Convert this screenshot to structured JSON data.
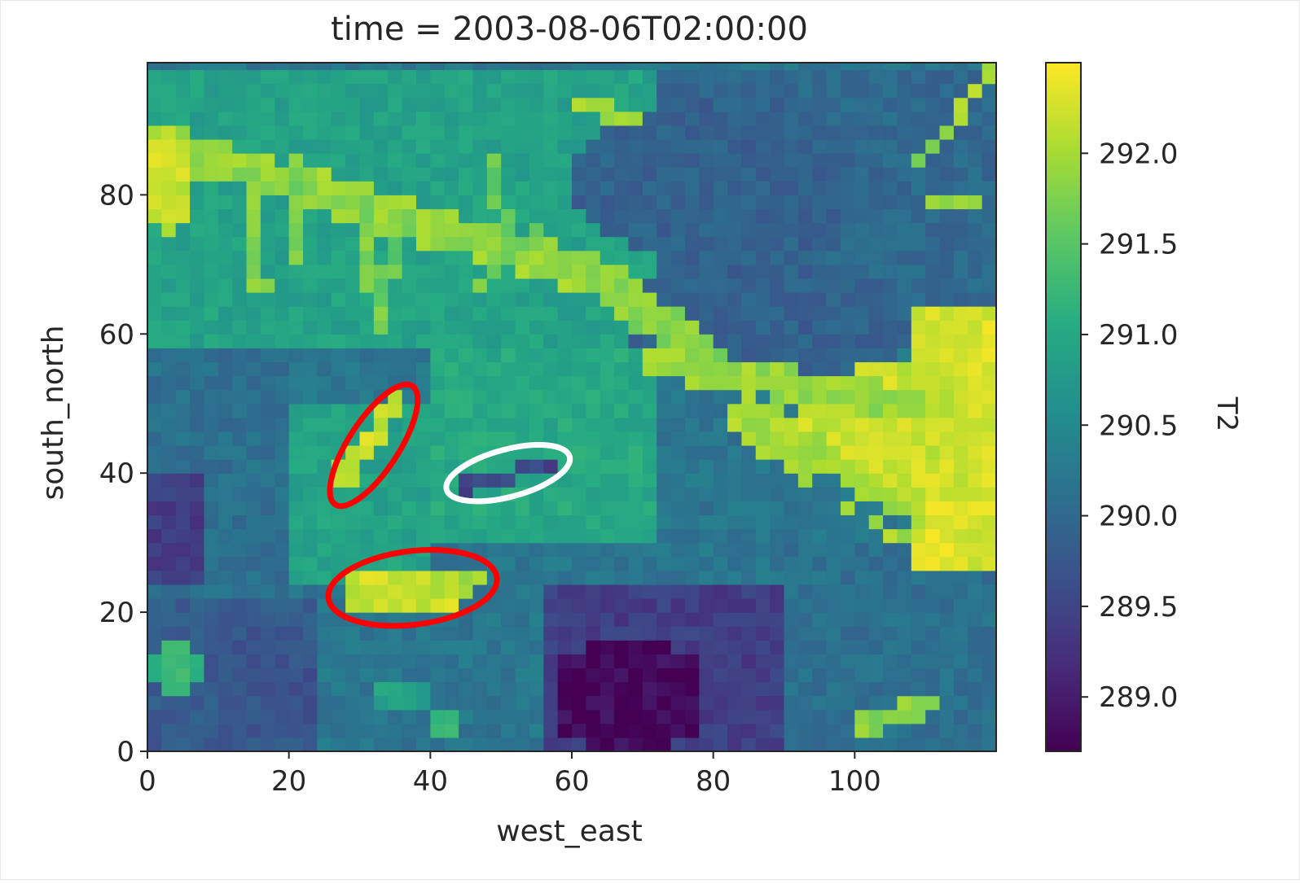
{
  "chart_data": {
    "type": "heatmap",
    "title": "time = 2003-08-06T02:00:00",
    "xlabel": "west_east",
    "ylabel": "south_north",
    "colorbar_label": "T2",
    "xlim": [
      0,
      120
    ],
    "ylim": [
      0,
      99
    ],
    "x_ticks": [
      0,
      20,
      40,
      60,
      80,
      100
    ],
    "y_ticks": [
      0,
      20,
      40,
      60,
      80
    ],
    "x_tick_labels": [
      "0",
      "20",
      "40",
      "60",
      "80",
      "100"
    ],
    "y_tick_labels": [
      "0",
      "20",
      "40",
      "60",
      "80"
    ],
    "colorbar_range": [
      288.7,
      292.5
    ],
    "colorbar_ticks": [
      289.0,
      289.5,
      290.0,
      290.5,
      291.0,
      291.5,
      292.0
    ],
    "colorbar_tick_labels": [
      "289.0",
      "289.5",
      "290.0",
      "290.5",
      "291.0",
      "291.5",
      "292.0"
    ],
    "colormap": "viridis",
    "grid": false,
    "background_value": 290.2,
    "regions": [
      {
        "kind": "rect",
        "x0": 0,
        "x1": 120,
        "y0": 58,
        "y1": 99,
        "value": 290.9
      },
      {
        "kind": "rect",
        "x0": 72,
        "x1": 120,
        "y0": 60,
        "y1": 99,
        "value": 290.0
      },
      {
        "kind": "rect",
        "x0": 0,
        "x1": 20,
        "y0": 20,
        "y1": 58,
        "value": 290.1
      },
      {
        "kind": "rect",
        "x0": 0,
        "x1": 25,
        "y0": 0,
        "y1": 22,
        "value": 289.8
      },
      {
        "kind": "rect",
        "x0": 40,
        "x1": 72,
        "y0": 30,
        "y1": 58,
        "value": 291.0
      },
      {
        "kind": "rect",
        "x0": 56,
        "x1": 90,
        "y0": 0,
        "y1": 24,
        "value": 289.4
      },
      {
        "kind": "rect",
        "x0": 90,
        "x1": 120,
        "y0": 0,
        "y1": 30,
        "value": 290.1
      },
      {
        "kind": "rect",
        "x0": 20,
        "x1": 40,
        "y0": 25,
        "y1": 50,
        "value": 290.9
      },
      {
        "kind": "blob",
        "cx": 68,
        "cy": 8,
        "rx": 11,
        "ry": 9,
        "value": 288.8
      },
      {
        "kind": "blob",
        "cx": 4,
        "cy": 32,
        "rx": 5,
        "ry": 9,
        "value": 289.4
      },
      {
        "kind": "blob",
        "cx": 18,
        "cy": 10,
        "rx": 7,
        "ry": 9,
        "value": 289.7
      },
      {
        "kind": "blob",
        "cx": 88,
        "cy": 62,
        "rx": 20,
        "ry": 10,
        "value": 289.9
      },
      {
        "kind": "blob",
        "cx": 82,
        "cy": 82,
        "rx": 22,
        "ry": 12,
        "value": 289.9
      },
      {
        "kind": "rect",
        "x0": 108,
        "x1": 120,
        "y0": 27,
        "y1": 64,
        "value": 292.3
      },
      {
        "kind": "blob",
        "cx": 106,
        "cy": 46,
        "rx": 14,
        "ry": 10,
        "value": 292.2
      },
      {
        "kind": "line",
        "x0": 0,
        "y0": 88,
        "x1": 64,
        "y1": 68,
        "w": 2.8,
        "value": 291.9
      },
      {
        "kind": "line",
        "x0": 64,
        "y0": 68,
        "x1": 80,
        "y1": 56,
        "w": 2.6,
        "value": 291.8
      },
      {
        "kind": "line",
        "x0": 72,
        "y0": 56,
        "x1": 108,
        "y1": 50,
        "w": 2.2,
        "value": 291.9
      },
      {
        "kind": "line",
        "x0": 85,
        "y0": 48,
        "x1": 106,
        "y1": 34,
        "w": 3.4,
        "value": 292.0
      },
      {
        "kind": "line",
        "x0": 3,
        "y0": 88,
        "x1": 3,
        "y1": 76,
        "w": 2.0,
        "value": 292.2
      },
      {
        "kind": "line",
        "x0": 14,
        "y0": 84,
        "x1": 16,
        "y1": 66,
        "w": 1.2,
        "value": 291.8
      },
      {
        "kind": "line",
        "x0": 20,
        "y0": 86,
        "x1": 22,
        "y1": 70,
        "w": 1.1,
        "value": 291.7
      },
      {
        "kind": "line",
        "x0": 30,
        "y0": 80,
        "x1": 33,
        "y1": 62,
        "w": 1.2,
        "value": 291.8
      },
      {
        "kind": "line",
        "x0": 38,
        "y0": 78,
        "x1": 32,
        "y1": 64,
        "w": 1.0,
        "value": 291.6
      },
      {
        "kind": "line",
        "x0": 48,
        "y0": 86,
        "x1": 52,
        "y1": 70,
        "w": 1.0,
        "value": 291.6
      },
      {
        "kind": "line",
        "x0": 56,
        "y0": 76,
        "x1": 46,
        "y1": 66,
        "w": 1.0,
        "value": 291.7
      },
      {
        "kind": "line",
        "x0": 28,
        "y0": 40,
        "x1": 35,
        "y1": 50,
        "w": 1.5,
        "value": 292.2
      },
      {
        "kind": "line",
        "x0": 30,
        "y0": 23,
        "x1": 42,
        "y1": 23,
        "w": 2.3,
        "value": 292.2
      },
      {
        "kind": "line",
        "x0": 42,
        "y0": 24,
        "x1": 47,
        "y1": 25,
        "w": 1.6,
        "value": 292.0
      },
      {
        "kind": "line",
        "x0": 45,
        "y0": 38,
        "x1": 56,
        "y1": 41,
        "w": 1.0,
        "value": 289.5
      },
      {
        "kind": "line",
        "x0": 95,
        "y0": 39,
        "x1": 106,
        "y1": 33,
        "w": 1.0,
        "value": 290.2
      },
      {
        "kind": "line",
        "x0": 60,
        "y0": 94,
        "x1": 70,
        "y1": 90,
        "w": 1.2,
        "value": 292.0
      },
      {
        "kind": "line",
        "x0": 108,
        "y0": 84,
        "x1": 114,
        "y1": 90,
        "w": 0.9,
        "value": 291.8
      },
      {
        "kind": "line",
        "x0": 115,
        "y0": 92,
        "x1": 119,
        "y1": 98,
        "w": 1.0,
        "value": 292.0
      },
      {
        "kind": "line",
        "x0": 110,
        "y0": 78,
        "x1": 119,
        "y1": 80,
        "w": 0.8,
        "value": 291.8
      },
      {
        "kind": "line",
        "x0": 102,
        "y0": 4,
        "x1": 110,
        "y1": 7,
        "w": 1.6,
        "value": 291.8
      },
      {
        "kind": "blob",
        "cx": 4,
        "cy": 12,
        "rx": 4,
        "ry": 4,
        "value": 291.2
      },
      {
        "kind": "blob",
        "cx": 42,
        "cy": 4,
        "rx": 3,
        "ry": 3,
        "value": 291.3
      },
      {
        "kind": "blob",
        "cx": 36,
        "cy": 8,
        "rx": 4,
        "ry": 3,
        "value": 290.9
      }
    ],
    "annotations": [
      {
        "shape": "ellipse",
        "color": "#ff0000",
        "cx": 32,
        "cy": 44,
        "rx": 10,
        "ry": 3.6,
        "angle_deg": 57
      },
      {
        "shape": "ellipse",
        "color": "#ffffff",
        "cx": 51,
        "cy": 40,
        "rx": 9,
        "ry": 3.4,
        "angle_deg": 15
      },
      {
        "shape": "ellipse",
        "color": "#ff0000",
        "cx": 37.5,
        "cy": 23.5,
        "rx": 12,
        "ry": 5.3,
        "angle_deg": 7
      }
    ]
  }
}
